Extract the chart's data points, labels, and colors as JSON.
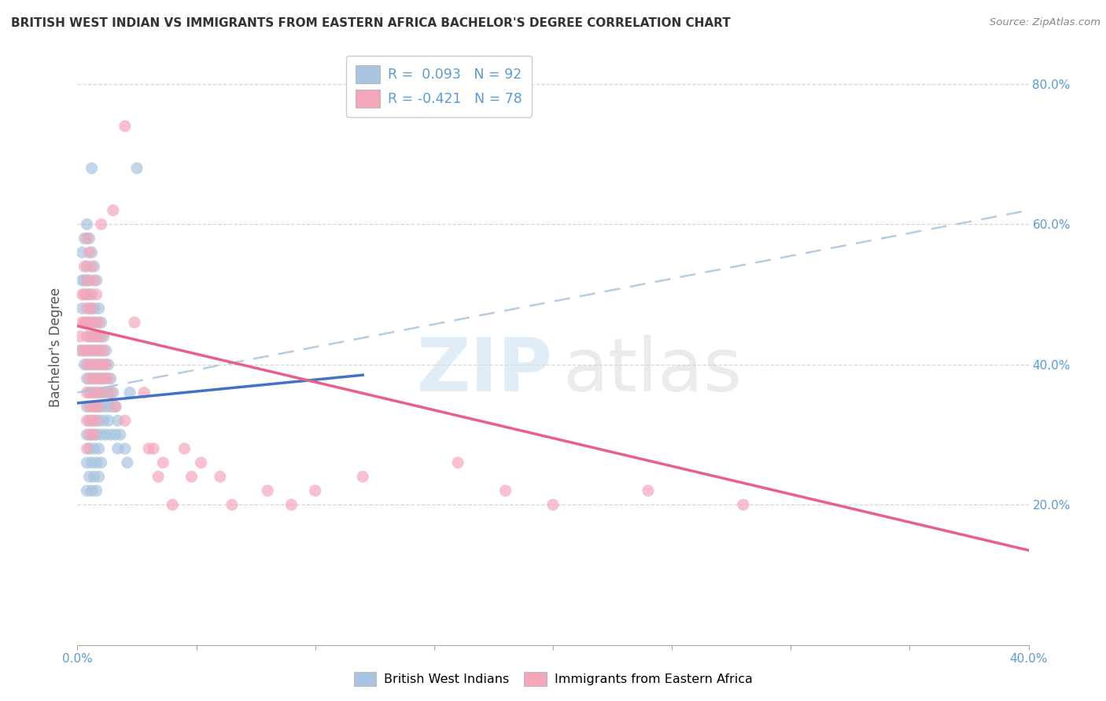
{
  "title": "BRITISH WEST INDIAN VS IMMIGRANTS FROM EASTERN AFRICA BACHELOR'S DEGREE CORRELATION CHART",
  "source": "Source: ZipAtlas.com",
  "ylabel": "Bachelor's Degree",
  "color_blue": "#a8c4e0",
  "color_pink": "#f4a7b9",
  "trendline_blue_color": "#4472c4",
  "trendline_pink_color": "#e8608a",
  "dash_color": "#a8c4e0",
  "xlim": [
    0.0,
    0.4
  ],
  "ylim": [
    0.0,
    0.85
  ],
  "xtick_vals": [
    0.0,
    0.05,
    0.1,
    0.15,
    0.2,
    0.25,
    0.3,
    0.35,
    0.4
  ],
  "xtick_labels": [
    "0.0%",
    "",
    "",
    "",
    "",
    "",
    "",
    "",
    "40.0%"
  ],
  "ytick_vals": [
    0.0,
    0.2,
    0.4,
    0.6,
    0.8
  ],
  "ytick_labels": [
    "",
    "20.0%",
    "40.0%",
    "60.0%",
    "80.0%"
  ],
  "grid_color": "#cccccc",
  "bg_color": "#ffffff",
  "blue_trend_x": [
    0.0,
    0.12
  ],
  "blue_trend_y": [
    0.345,
    0.385
  ],
  "pink_trend_x": [
    0.0,
    0.4
  ],
  "pink_trend_y": [
    0.455,
    0.135
  ],
  "dash_trend_x": [
    0.0,
    0.4
  ],
  "dash_trend_y": [
    0.36,
    0.62
  ],
  "blue_scatter": [
    [
      0.001,
      0.42
    ],
    [
      0.002,
      0.56
    ],
    [
      0.002,
      0.52
    ],
    [
      0.002,
      0.48
    ],
    [
      0.003,
      0.58
    ],
    [
      0.003,
      0.52
    ],
    [
      0.003,
      0.46
    ],
    [
      0.003,
      0.4
    ],
    [
      0.004,
      0.6
    ],
    [
      0.004,
      0.54
    ],
    [
      0.004,
      0.5
    ],
    [
      0.004,
      0.46
    ],
    [
      0.004,
      0.42
    ],
    [
      0.004,
      0.38
    ],
    [
      0.004,
      0.34
    ],
    [
      0.004,
      0.3
    ],
    [
      0.004,
      0.26
    ],
    [
      0.004,
      0.22
    ],
    [
      0.005,
      0.58
    ],
    [
      0.005,
      0.52
    ],
    [
      0.005,
      0.48
    ],
    [
      0.005,
      0.44
    ],
    [
      0.005,
      0.4
    ],
    [
      0.005,
      0.36
    ],
    [
      0.005,
      0.32
    ],
    [
      0.005,
      0.28
    ],
    [
      0.005,
      0.24
    ],
    [
      0.006,
      0.56
    ],
    [
      0.006,
      0.5
    ],
    [
      0.006,
      0.46
    ],
    [
      0.006,
      0.42
    ],
    [
      0.006,
      0.38
    ],
    [
      0.006,
      0.34
    ],
    [
      0.006,
      0.3
    ],
    [
      0.006,
      0.26
    ],
    [
      0.006,
      0.22
    ],
    [
      0.007,
      0.54
    ],
    [
      0.007,
      0.48
    ],
    [
      0.007,
      0.44
    ],
    [
      0.007,
      0.4
    ],
    [
      0.007,
      0.36
    ],
    [
      0.007,
      0.32
    ],
    [
      0.007,
      0.28
    ],
    [
      0.007,
      0.24
    ],
    [
      0.008,
      0.52
    ],
    [
      0.008,
      0.46
    ],
    [
      0.008,
      0.42
    ],
    [
      0.008,
      0.38
    ],
    [
      0.008,
      0.34
    ],
    [
      0.008,
      0.3
    ],
    [
      0.008,
      0.26
    ],
    [
      0.008,
      0.22
    ],
    [
      0.009,
      0.48
    ],
    [
      0.009,
      0.44
    ],
    [
      0.009,
      0.4
    ],
    [
      0.009,
      0.36
    ],
    [
      0.009,
      0.32
    ],
    [
      0.009,
      0.28
    ],
    [
      0.009,
      0.24
    ],
    [
      0.01,
      0.46
    ],
    [
      0.01,
      0.42
    ],
    [
      0.01,
      0.38
    ],
    [
      0.01,
      0.34
    ],
    [
      0.01,
      0.3
    ],
    [
      0.01,
      0.26
    ],
    [
      0.011,
      0.44
    ],
    [
      0.011,
      0.4
    ],
    [
      0.011,
      0.36
    ],
    [
      0.011,
      0.32
    ],
    [
      0.012,
      0.42
    ],
    [
      0.012,
      0.38
    ],
    [
      0.012,
      0.34
    ],
    [
      0.012,
      0.3
    ],
    [
      0.013,
      0.4
    ],
    [
      0.013,
      0.36
    ],
    [
      0.013,
      0.32
    ],
    [
      0.014,
      0.38
    ],
    [
      0.014,
      0.34
    ],
    [
      0.014,
      0.3
    ],
    [
      0.015,
      0.36
    ],
    [
      0.016,
      0.34
    ],
    [
      0.016,
      0.3
    ],
    [
      0.017,
      0.32
    ],
    [
      0.017,
      0.28
    ],
    [
      0.018,
      0.3
    ],
    [
      0.02,
      0.28
    ],
    [
      0.021,
      0.26
    ],
    [
      0.022,
      0.36
    ],
    [
      0.025,
      0.68
    ],
    [
      0.006,
      0.68
    ]
  ],
  "pink_scatter": [
    [
      0.001,
      0.44
    ],
    [
      0.002,
      0.5
    ],
    [
      0.002,
      0.46
    ],
    [
      0.002,
      0.42
    ],
    [
      0.003,
      0.54
    ],
    [
      0.003,
      0.5
    ],
    [
      0.003,
      0.46
    ],
    [
      0.003,
      0.42
    ],
    [
      0.004,
      0.58
    ],
    [
      0.004,
      0.52
    ],
    [
      0.004,
      0.48
    ],
    [
      0.004,
      0.44
    ],
    [
      0.004,
      0.4
    ],
    [
      0.004,
      0.36
    ],
    [
      0.004,
      0.32
    ],
    [
      0.004,
      0.28
    ],
    [
      0.005,
      0.56
    ],
    [
      0.005,
      0.5
    ],
    [
      0.005,
      0.46
    ],
    [
      0.005,
      0.42
    ],
    [
      0.005,
      0.38
    ],
    [
      0.005,
      0.34
    ],
    [
      0.005,
      0.3
    ],
    [
      0.006,
      0.54
    ],
    [
      0.006,
      0.48
    ],
    [
      0.006,
      0.44
    ],
    [
      0.006,
      0.4
    ],
    [
      0.006,
      0.36
    ],
    [
      0.006,
      0.32
    ],
    [
      0.007,
      0.52
    ],
    [
      0.007,
      0.46
    ],
    [
      0.007,
      0.42
    ],
    [
      0.007,
      0.38
    ],
    [
      0.007,
      0.34
    ],
    [
      0.007,
      0.3
    ],
    [
      0.008,
      0.5
    ],
    [
      0.008,
      0.44
    ],
    [
      0.008,
      0.4
    ],
    [
      0.008,
      0.36
    ],
    [
      0.008,
      0.32
    ],
    [
      0.009,
      0.46
    ],
    [
      0.009,
      0.42
    ],
    [
      0.009,
      0.38
    ],
    [
      0.009,
      0.34
    ],
    [
      0.01,
      0.44
    ],
    [
      0.01,
      0.4
    ],
    [
      0.01,
      0.36
    ],
    [
      0.011,
      0.42
    ],
    [
      0.011,
      0.38
    ],
    [
      0.012,
      0.4
    ],
    [
      0.013,
      0.38
    ],
    [
      0.014,
      0.36
    ],
    [
      0.016,
      0.34
    ],
    [
      0.02,
      0.32
    ],
    [
      0.024,
      0.46
    ],
    [
      0.028,
      0.36
    ],
    [
      0.03,
      0.28
    ],
    [
      0.032,
      0.28
    ],
    [
      0.034,
      0.24
    ],
    [
      0.036,
      0.26
    ],
    [
      0.04,
      0.2
    ],
    [
      0.045,
      0.28
    ],
    [
      0.048,
      0.24
    ],
    [
      0.052,
      0.26
    ],
    [
      0.06,
      0.24
    ],
    [
      0.065,
      0.2
    ],
    [
      0.08,
      0.22
    ],
    [
      0.09,
      0.2
    ],
    [
      0.1,
      0.22
    ],
    [
      0.12,
      0.24
    ],
    [
      0.16,
      0.26
    ],
    [
      0.18,
      0.22
    ],
    [
      0.2,
      0.2
    ],
    [
      0.24,
      0.22
    ],
    [
      0.28,
      0.2
    ],
    [
      0.02,
      0.74
    ],
    [
      0.01,
      0.6
    ],
    [
      0.015,
      0.62
    ]
  ]
}
